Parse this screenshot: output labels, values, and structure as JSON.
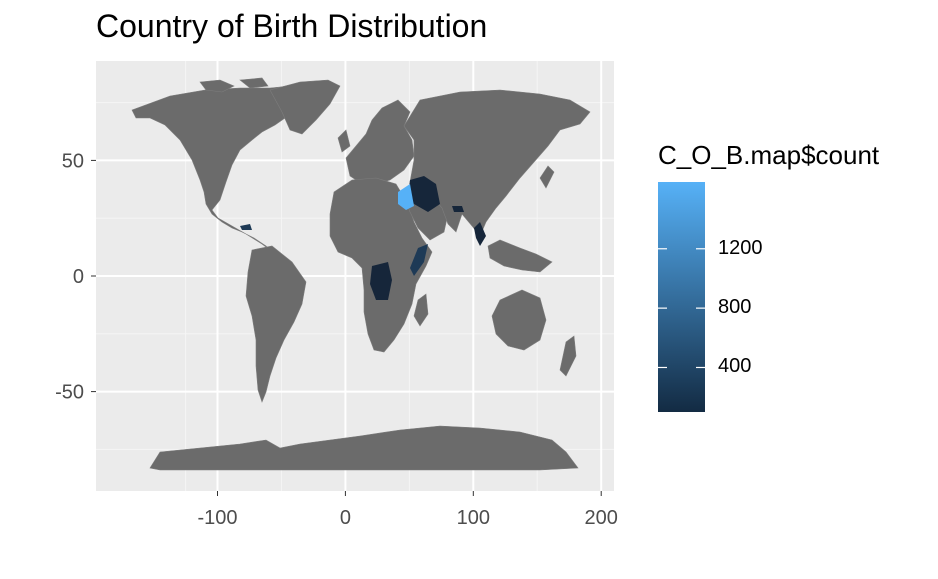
{
  "title": "Country of Birth Distribution",
  "chart_data": {
    "type": "choropleth-map",
    "title": "Country of Birth Distribution",
    "xlabel": "",
    "ylabel": "",
    "x_ticks": [
      -100,
      0,
      100,
      200
    ],
    "y_ticks": [
      50,
      0,
      -50
    ],
    "xlim": [
      -195,
      210
    ],
    "ylim": [
      -93,
      93
    ],
    "grid": true,
    "legend": {
      "title": "C_O_B.map$count",
      "placement": "right",
      "type": "gradient",
      "ticks": [
        400,
        800,
        1200
      ],
      "range": [
        100,
        1650
      ],
      "color_low": "#132B43",
      "color_high": "#56B1F7"
    },
    "default_fill": "#6b6b6b",
    "highlighted_regions": [
      {
        "approx_lon": 53,
        "approx_lat": 32,
        "value": 200
      },
      {
        "approx_lon": 43,
        "approx_lat": 33,
        "value": 1600
      },
      {
        "approx_lon": 23,
        "approx_lat": -3,
        "value": 150
      },
      {
        "approx_lon": 45,
        "approx_lat": 5,
        "value": 350
      },
      {
        "approx_lon": 84,
        "approx_lat": 28,
        "value": 250
      },
      {
        "approx_lon": 96,
        "approx_lat": 20,
        "value": 200
      },
      {
        "approx_lon": -77,
        "approx_lat": 19,
        "value": 500
      }
    ]
  }
}
